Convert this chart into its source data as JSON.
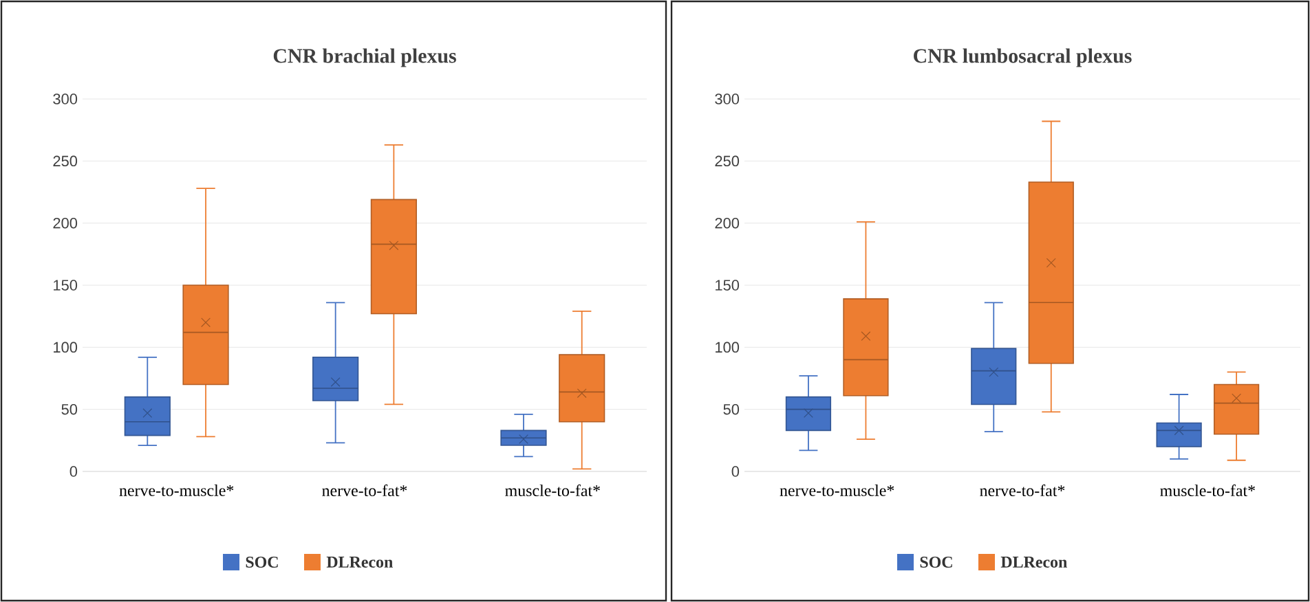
{
  "chart_data": [
    {
      "type": "box",
      "title": "CNR brachial plexus",
      "categories": [
        "nerve-to-muscle*",
        "nerve-to-fat*",
        "muscle-to-fat*"
      ],
      "ylim": [
        0,
        300
      ],
      "yticks": [
        0,
        50,
        100,
        150,
        200,
        250,
        300
      ],
      "grid": "y",
      "legend": "bottom",
      "series": [
        {
          "name": "SOC",
          "color": "#4472c4",
          "boxes": [
            {
              "low": 21,
              "q1": 29,
              "median": 40,
              "q3": 60,
              "high": 92,
              "mean": 47
            },
            {
              "low": 23,
              "q1": 57,
              "median": 67,
              "q3": 92,
              "high": 136,
              "mean": 72
            },
            {
              "low": 12,
              "q1": 21,
              "median": 27,
              "q3": 33,
              "high": 46,
              "mean": 26
            }
          ]
        },
        {
          "name": "DLRecon",
          "color": "#ed7d31",
          "boxes": [
            {
              "low": 28,
              "q1": 70,
              "median": 112,
              "q3": 150,
              "high": 228,
              "mean": 120
            },
            {
              "low": 54,
              "q1": 127,
              "median": 183,
              "q3": 219,
              "high": 263,
              "mean": 182
            },
            {
              "low": 2,
              "q1": 40,
              "median": 64,
              "q3": 94,
              "high": 129,
              "mean": 63
            }
          ]
        }
      ]
    },
    {
      "type": "box",
      "title": "CNR lumbosacral plexus",
      "categories": [
        "nerve-to-muscle*",
        "nerve-to-fat*",
        "muscle-to-fat*"
      ],
      "ylim": [
        0,
        300
      ],
      "yticks": [
        0,
        50,
        100,
        150,
        200,
        250,
        300
      ],
      "grid": "y",
      "legend": "bottom",
      "series": [
        {
          "name": "SOC",
          "color": "#4472c4",
          "boxes": [
            {
              "low": 17,
              "q1": 33,
              "median": 50,
              "q3": 60,
              "high": 77,
              "mean": 47
            },
            {
              "low": 32,
              "q1": 54,
              "median": 81,
              "q3": 99,
              "high": 136,
              "mean": 80
            },
            {
              "low": 10,
              "q1": 20,
              "median": 33,
              "q3": 39,
              "high": 62,
              "mean": 33
            }
          ]
        },
        {
          "name": "DLRecon",
          "color": "#ed7d31",
          "boxes": [
            {
              "low": 26,
              "q1": 61,
              "median": 90,
              "q3": 139,
              "high": 201,
              "mean": 109
            },
            {
              "low": 48,
              "q1": 87,
              "median": 136,
              "q3": 233,
              "high": 282,
              "mean": 168
            },
            {
              "low": 9,
              "q1": 30,
              "median": 55,
              "q3": 70,
              "high": 80,
              "mean": 59
            }
          ]
        }
      ]
    }
  ]
}
